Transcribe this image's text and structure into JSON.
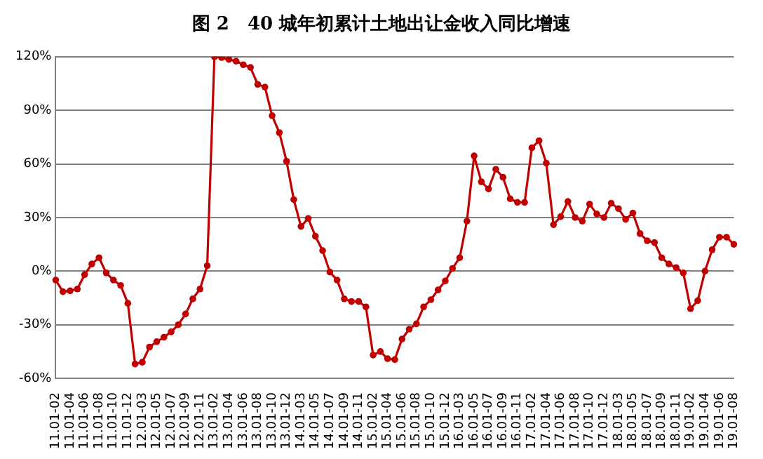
{
  "chart_data": {
    "type": "line",
    "title": "图 2　40 城年初累计土地出让金收入同比增速",
    "categories": [
      "11.01-02",
      null,
      "11.01-04",
      null,
      "11.01-06",
      null,
      "11.01-08",
      null,
      "11.01-10",
      null,
      "11.01-12",
      null,
      "12.01-03",
      null,
      "12.01-05",
      null,
      "12.01-07",
      null,
      "12.01-09",
      null,
      "12.01-11",
      null,
      "13.01-02",
      null,
      "13.01-04",
      null,
      "13.01-06",
      null,
      "13.01-08",
      null,
      "13.01-10",
      null,
      "13.01-12",
      null,
      "14.01-03",
      null,
      "14.01-05",
      null,
      "14.01-07",
      null,
      "14.01-09",
      null,
      "14.01-11",
      null,
      "15.01-02",
      null,
      "15.01-04",
      null,
      "15.01-06",
      null,
      "15.01-08",
      null,
      "15.01-10",
      null,
      "15.01-12",
      null,
      "16.01-03",
      null,
      "16.01-05",
      null,
      "16.01-07",
      null,
      "16.01-09",
      null,
      "16.01-11",
      null,
      "17.01-02",
      null,
      "17.01-04",
      null,
      "17.01-06",
      null,
      "17.01-08",
      null,
      "17.01-10",
      null,
      "17.01-12",
      null,
      "18.01-03",
      null,
      "18.01-05",
      null,
      "18.01-07",
      null,
      "18.01-09",
      null,
      "18.01-11",
      null,
      "19.01-02",
      null,
      "19.01-04",
      null,
      "19.01-06",
      null,
      "19.01-08"
    ],
    "series": [
      {
        "color": "#c00000",
        "values": [
          -5,
          -11.5,
          -11,
          -10,
          -2,
          4,
          7.5,
          -1,
          -5,
          -8,
          -18,
          -52,
          -51,
          -42.5,
          -39.5,
          -37,
          -34,
          -30,
          -24,
          -15.5,
          -10,
          3,
          120,
          119.5,
          118.5,
          117.5,
          115.5,
          114,
          104.5,
          103,
          87,
          77.5,
          61.5,
          40,
          25,
          29.5,
          19.5,
          11.5,
          -0.5,
          -5,
          -15.5,
          -17,
          -17,
          -20,
          -47,
          -45,
          -49,
          -49.5,
          -38,
          -32.5,
          -29.5,
          -20,
          -16,
          -10.5,
          -5.5,
          1.5,
          7.5,
          28,
          64.5,
          50,
          46,
          57,
          52.5,
          40.5,
          38.5,
          38.5,
          69,
          73,
          60.5,
          26,
          30.5,
          39,
          30,
          28,
          37.5,
          32,
          30,
          38,
          35,
          29,
          32.5,
          21,
          17,
          16,
          7.5,
          4,
          2,
          -1,
          -21,
          -16.5,
          0,
          12,
          19,
          19,
          15
        ]
      }
    ],
    "ylim": [
      -60,
      120
    ],
    "yticks": [
      {
        "value": -60,
        "label": "-60%"
      },
      {
        "value": -30,
        "label": "-30%"
      },
      {
        "value": 0,
        "label": "0%"
      },
      {
        "value": 30,
        "label": "30%"
      },
      {
        "value": 60,
        "label": "60%"
      },
      {
        "value": 90,
        "label": "90%"
      },
      {
        "value": 120,
        "label": "120%"
      }
    ],
    "grid": "y",
    "marker": "circle",
    "line_style": "solid"
  }
}
